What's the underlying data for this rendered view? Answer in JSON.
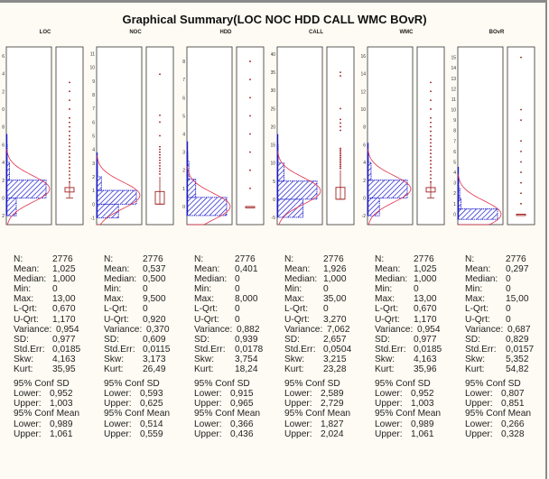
{
  "chart_data": {
    "type": "graphical-summary",
    "title": "Graphical Summary(LOC NOC HDD CALL WMC BOvR)",
    "variables": [
      {
        "name": "LOC",
        "ticks": [
          "6",
          "4",
          "2",
          "0",
          "8",
          "6",
          "4",
          "2",
          "0",
          "2"
        ],
        "tick_values": [
          16,
          14,
          12,
          10,
          8,
          6,
          4,
          2,
          0,
          -2
        ],
        "ylim": [
          -3,
          17
        ],
        "hist": [
          {
            "from": -2,
            "to": 0,
            "freq": 0.25
          },
          {
            "from": 0,
            "to": 2,
            "freq": 1.0
          },
          {
            "from": 2,
            "to": 4,
            "freq": 0.08
          },
          {
            "from": 4,
            "to": 6,
            "freq": 0.01
          }
        ],
        "outliers": [
          1.8,
          2.2,
          2.6,
          3.0,
          3.4,
          3.8,
          4.2,
          4.6,
          5.0,
          5.4,
          5.8,
          6.2,
          6.6,
          7,
          7.5,
          8,
          8.5,
          9,
          10,
          11,
          12,
          13
        ],
        "box": {
          "low": 0,
          "q1": 0.67,
          "q3": 1.17,
          "high": 1.9
        }
      },
      {
        "name": "NOC",
        "ticks": [
          "11",
          "10",
          "9",
          "8",
          "7",
          "6",
          "5",
          "4",
          "3",
          "2",
          "1",
          "0",
          "-1"
        ],
        "tick_values": [
          11,
          10,
          9,
          8,
          7,
          6,
          5,
          4,
          3,
          2,
          1,
          0,
          -1
        ],
        "ylim": [
          -1.5,
          11.5
        ],
        "hist": [
          {
            "from": -1,
            "to": 0,
            "freq": 0.55
          },
          {
            "from": 0,
            "to": 1,
            "freq": 1.0
          },
          {
            "from": 1,
            "to": 2,
            "freq": 0.12
          },
          {
            "from": 2,
            "to": 3,
            "freq": 0.02
          }
        ],
        "outliers": [
          2.2,
          2.4,
          2.6,
          2.8,
          3.0,
          3.2,
          3.4,
          3.6,
          3.8,
          4.0,
          4.2,
          5,
          6,
          6.5,
          9.5
        ],
        "box": {
          "low": 0,
          "q1": 0,
          "q3": 0.92,
          "high": 2.0
        }
      },
      {
        "name": "HDD",
        "ticks": [
          "8",
          "7",
          "6",
          "5",
          "4",
          "3",
          "2",
          "1",
          "0"
        ],
        "tick_values": [
          8,
          7,
          6,
          5,
          4,
          3,
          2,
          1,
          0
        ],
        "ylim": [
          -1,
          8.8
        ],
        "hist": [
          {
            "from": -0.5,
            "to": 0.5,
            "freq": 1.0
          },
          {
            "from": 0.5,
            "to": 1.5,
            "freq": 0.22
          },
          {
            "from": 1.5,
            "to": 2.5,
            "freq": 0.05
          },
          {
            "from": 2.5,
            "to": 3,
            "freq": 0.01
          }
        ],
        "outliers": [
          1,
          2,
          3,
          4,
          5,
          6,
          7,
          8
        ],
        "box": {
          "low": 0,
          "q1": 0,
          "q3": 0,
          "high": 0
        }
      },
      {
        "name": "CALL",
        "ticks": [
          "40",
          "35",
          "30",
          "25",
          "20",
          "15",
          "10",
          "5",
          "0",
          "-5"
        ],
        "tick_values": [
          40,
          35,
          30,
          25,
          20,
          15,
          10,
          5,
          0,
          -5
        ],
        "ylim": [
          -7,
          42
        ],
        "hist": [
          {
            "from": -5,
            "to": 0,
            "freq": 0.65
          },
          {
            "from": 0,
            "to": 5,
            "freq": 1.0
          },
          {
            "from": 5,
            "to": 10,
            "freq": 0.17
          },
          {
            "from": 10,
            "to": 15,
            "freq": 0.02
          }
        ],
        "outliers": [
          8.5,
          9,
          9.5,
          10,
          10.5,
          11,
          11.5,
          12,
          12.5,
          13,
          13.5,
          14,
          19,
          20,
          21,
          22,
          25,
          34,
          35
        ],
        "box": {
          "low": 0,
          "q1": 0,
          "q3": 3.27,
          "high": 8
        }
      },
      {
        "name": "WMC",
        "ticks": [
          "16",
          "14",
          "12",
          "10",
          "8",
          "6",
          "4",
          "2",
          "0",
          "-2"
        ],
        "tick_values": [
          16,
          14,
          12,
          10,
          8,
          6,
          4,
          2,
          0,
          -2
        ],
        "ylim": [
          -3,
          17
        ],
        "hist": [
          {
            "from": -2,
            "to": 0,
            "freq": 0.3
          },
          {
            "from": 0,
            "to": 2,
            "freq": 1.0
          },
          {
            "from": 2,
            "to": 4,
            "freq": 0.09
          },
          {
            "from": 4,
            "to": 5,
            "freq": 0.01
          }
        ],
        "outliers": [
          1.8,
          2.2,
          2.6,
          3.0,
          3.4,
          3.8,
          4.2,
          4.6,
          5.0,
          5.4,
          5.8,
          6.2,
          6.6,
          7,
          7.5,
          8,
          8.5,
          9,
          10,
          11,
          12,
          13
        ],
        "box": {
          "low": 0,
          "q1": 0.67,
          "q3": 1.17,
          "high": 1.9
        }
      },
      {
        "name": "BOvR",
        "ticks": [
          "15",
          "14",
          "13",
          "12",
          "11",
          "10",
          "9",
          "8",
          "7",
          "6",
          "5",
          "4",
          "3",
          "2",
          "1",
          "0"
        ],
        "tick_values": [
          15,
          14,
          13,
          12,
          11,
          10,
          9,
          8,
          7,
          6,
          5,
          4,
          3,
          2,
          1,
          0
        ],
        "ylim": [
          -1,
          16
        ],
        "hist": [
          {
            "from": -0.5,
            "to": 0.5,
            "freq": 1.0
          },
          {
            "from": 0.5,
            "to": 1.5,
            "freq": 0.08
          },
          {
            "from": 1.5,
            "to": 2.5,
            "freq": 0.05
          },
          {
            "from": 2.5,
            "to": 3.5,
            "freq": 0.01
          }
        ],
        "outliers": [
          1,
          2,
          3,
          4,
          5,
          6,
          7,
          9,
          10,
          15
        ],
        "box": {
          "low": 0,
          "q1": 0,
          "q3": 0,
          "high": 0
        }
      }
    ],
    "stats_labels": [
      "N:",
      "Mean:",
      "Median:",
      "Min:",
      "Max:",
      "L-Qrt:",
      "U-Qrt:",
      "Variance:",
      "SD:",
      "Std.Err:",
      "Skw:",
      "Kurt:"
    ],
    "ci_labels": {
      "sd_title": "95% Conf SD",
      "mean_title": "95% Conf Mean",
      "lower": "Lower:",
      "upper": "Upper:"
    },
    "stats": [
      {
        "values": [
          "2776",
          "1,025",
          "1,000",
          "0",
          "13,00",
          "0,670",
          "1,170",
          "0,954",
          "0,977",
          "0,0185",
          "4,163",
          "35,95"
        ],
        "ci_sd": [
          "0,952",
          "1,003"
        ],
        "ci_mean": [
          "0,989",
          "1,061"
        ]
      },
      {
        "values": [
          "2776",
          "0,537",
          "0,500",
          "0",
          "9,500",
          "0",
          "0,920",
          "0,370",
          "0,609",
          "0,0115",
          "3,173",
          "26,49"
        ],
        "ci_sd": [
          "0,593",
          "0,625"
        ],
        "ci_mean": [
          "0,514",
          "0,559"
        ]
      },
      {
        "values": [
          "2776",
          "0,401",
          "0",
          "0",
          "8,000",
          "0",
          "0",
          "0,882",
          "0,939",
          "0,0178",
          "3,754",
          "18,24"
        ],
        "ci_sd": [
          "0,915",
          "0,965"
        ],
        "ci_mean": [
          "0,366",
          "0,436"
        ]
      },
      {
        "values": [
          "2776",
          "1,926",
          "1,000",
          "0",
          "35,00",
          "0",
          "3,270",
          "7,062",
          "2,657",
          "0,0504",
          "3,215",
          "23,28"
        ],
        "ci_sd": [
          "2,589",
          "2,729"
        ],
        "ci_mean": [
          "1,827",
          "2,024"
        ]
      },
      {
        "values": [
          "2776",
          "1,025",
          "1,000",
          "0",
          "13,00",
          "0,670",
          "1,170",
          "0,954",
          "0,977",
          "0,0185",
          "4,163",
          "35,96"
        ],
        "ci_sd": [
          "0,952",
          "1,003"
        ],
        "ci_mean": [
          "0,989",
          "1,061"
        ]
      },
      {
        "values": [
          "2776",
          "0,297",
          "0",
          "0",
          "15,00",
          "0",
          "0",
          "0,687",
          "0,829",
          "0,0157",
          "5,352",
          "54,82"
        ],
        "ci_sd": [
          "0,807",
          "0,851"
        ],
        "ci_mean": [
          "0,266",
          "0,328"
        ]
      }
    ],
    "colors": {
      "hist": "#1a1acc",
      "curve": "#e0304a",
      "outlier": "#a01818",
      "box": "#a02020"
    }
  }
}
